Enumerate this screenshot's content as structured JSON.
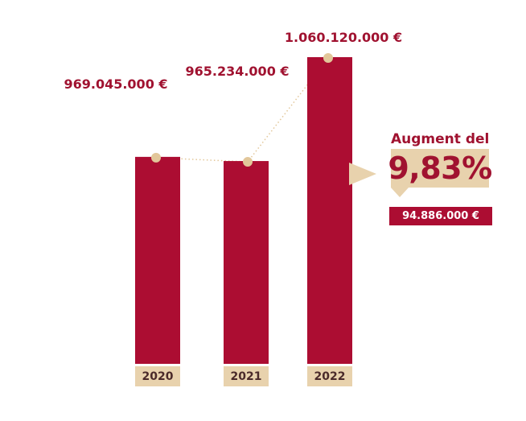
{
  "colors": {
    "bar": "#ac0d32",
    "accent": "#a01230",
    "label_bg": "#e8d2ad",
    "dot": "#e2c79a"
  },
  "chart_data": {
    "type": "bar",
    "categories": [
      "2020",
      "2021",
      "2022"
    ],
    "values": [
      969045000,
      965234000,
      1060120000
    ],
    "value_labels": [
      "969.045.000 €",
      "965.234.000 €",
      "1.060.120.000 €"
    ],
    "title": "",
    "xlabel": "",
    "ylabel": "",
    "ylim": [
      0,
      1060120000
    ],
    "grid": false,
    "trend_line": true
  },
  "callout": {
    "label": "Augment del",
    "percent": "9,83%",
    "difference": "94.886.000 €"
  }
}
